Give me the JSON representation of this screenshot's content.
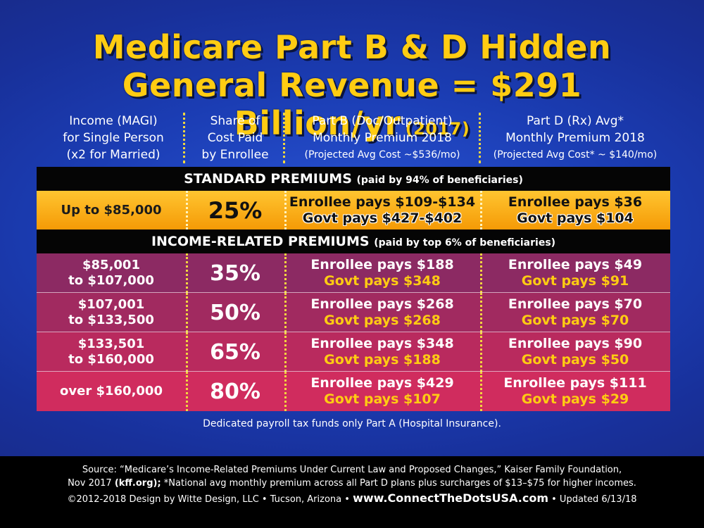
{
  "title": {
    "line1": "Medicare Part B & D Hidden",
    "line2": "General Revenue = $291 Billion/yr",
    "year": "(2017)"
  },
  "headers": {
    "income": [
      "Income (MAGI)",
      "for Single Person",
      "(x2 for Married)"
    ],
    "share": [
      "Share of",
      "Cost Paid",
      "by Enrollee"
    ],
    "partb": [
      "Part B (Doc/Outpatient)",
      "Monthly Premium 2018",
      "(Projected Avg Cost ~$536/mo)"
    ],
    "partd": [
      "Part D (Rx) Avg*",
      "Monthly Premium 2018",
      "(Projected Avg Cost* ~ $140/mo)"
    ]
  },
  "standard_band": {
    "label": "STANDARD PREMIUMS",
    "note": "(paid by 94% of beneficiaries)"
  },
  "standard_row": {
    "income": "Up to $85,000",
    "share": "25%",
    "b_enrollee": "Enrollee pays $109-$134",
    "b_govt": "Govt pays $427-$402",
    "d_enrollee": "Enrollee pays $36",
    "d_govt": "Govt pays $104"
  },
  "income_band": {
    "label": "INCOME-RELATED PREMIUMS",
    "note": "(paid by top 6% of beneficiaries)"
  },
  "rows": [
    {
      "income1": "$85,001",
      "income2": "to $107,000",
      "share": "35%",
      "b_enrollee": "Enrollee pays $188",
      "b_govt": "Govt pays $348",
      "d_enrollee": "Enrollee pays $49",
      "d_govt": "Govt pays $91"
    },
    {
      "income1": "$107,001",
      "income2": "to $133,500",
      "share": "50%",
      "b_enrollee": "Enrollee pays $268",
      "b_govt": "Govt pays $268",
      "d_enrollee": "Enrollee pays $70",
      "d_govt": "Govt pays $70"
    },
    {
      "income1": "$133,501",
      "income2": "to $160,000",
      "share": "65%",
      "b_enrollee": "Enrollee pays $348",
      "b_govt": "Govt pays $188",
      "d_enrollee": "Enrollee pays $90",
      "d_govt": "Govt pays $50"
    },
    {
      "income1": "over $160,000",
      "income2": "",
      "share": "80%",
      "b_enrollee": "Enrollee pays $429",
      "b_govt": "Govt pays $107",
      "d_enrollee": "Enrollee pays $111",
      "d_govt": "Govt pays $29"
    }
  ],
  "note_parta": "Dedicated payroll tax funds only Part A (Hospital Insurance).",
  "footer": {
    "source_line1": "Source: “Medicare’s Income-Related Premiums Under Current Law and Proposed Changes,” Kaiser Family Foundation,",
    "source_line2_pre": "Nov 2017 ",
    "source_line2_bold": "(kff.org);",
    "source_line2_post": " *National avg monthly premium across all Part D plans plus surcharges of $13–$75 for higher incomes.",
    "copyright": "©2012-2018 Design by Witte Design, LLC • Tucson, Arizona •",
    "url": "www.ConnectTheDotsUSA.com",
    "updated": "• Updated 6/13/18"
  }
}
